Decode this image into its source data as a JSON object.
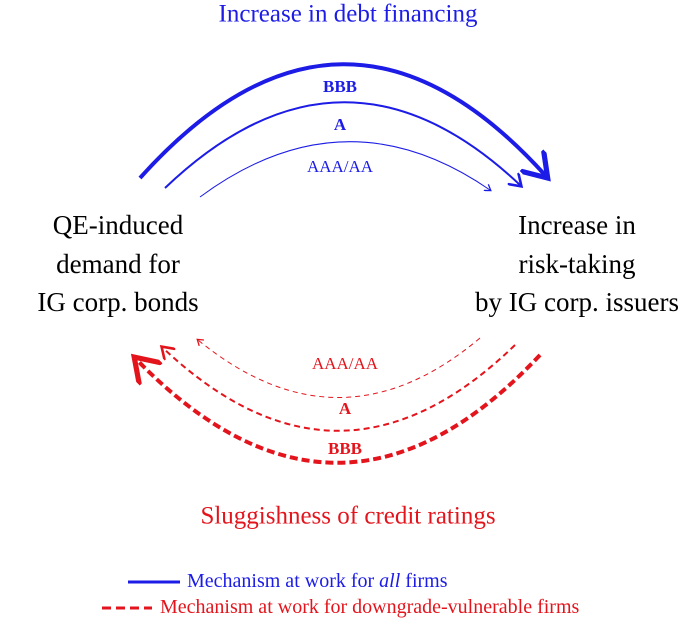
{
  "title_top": "Increase in debt financing",
  "upper_arcs": [
    {
      "label": "BBB"
    },
    {
      "label": "A"
    },
    {
      "label": "AAA/AA"
    }
  ],
  "left_node": {
    "lines": [
      "QE-induced",
      "demand for",
      "IG corp. bonds"
    ]
  },
  "right_node": {
    "lines": [
      "Increase in",
      "risk-taking",
      "by IG corp. issuers"
    ]
  },
  "lower_arcs": [
    {
      "label": "AAA/AA"
    },
    {
      "label": "A"
    },
    {
      "label": "BBB"
    }
  ],
  "title_bottom": "Sluggishness of credit ratings",
  "legend": [
    {
      "parts": [
        "Mechanism at work for ",
        "all",
        " firms"
      ]
    },
    {
      "parts": [
        "Mechanism at work for downgrade-vulnerable firms"
      ]
    }
  ]
}
